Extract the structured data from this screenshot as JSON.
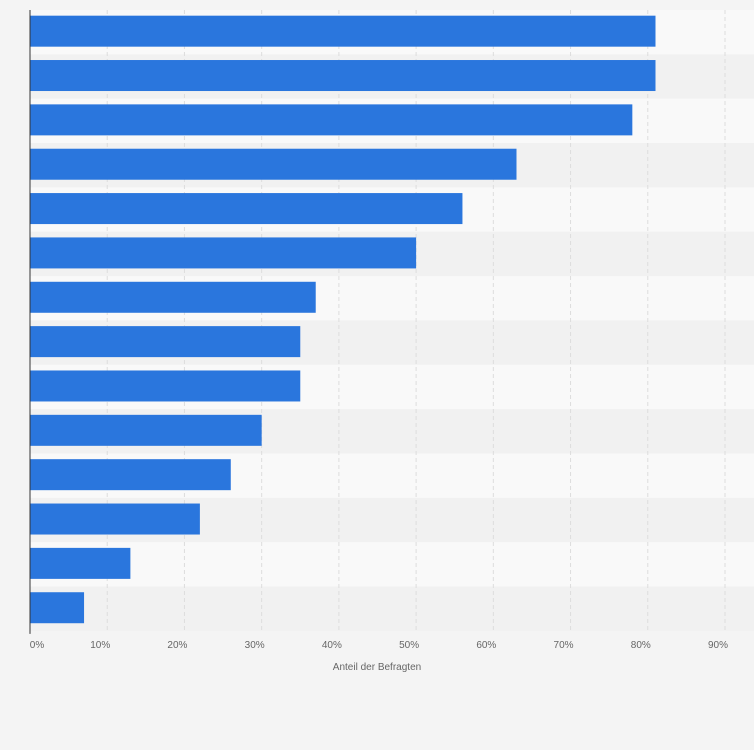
{
  "chart_data": {
    "type": "bar",
    "orientation": "horizontal",
    "title": "",
    "xlabel": "Anteil der Befragten",
    "ylabel": "",
    "categories": [
      "",
      "",
      "",
      "",
      "",
      "",
      "",
      "",
      "",
      "",
      "",
      "",
      "",
      ""
    ],
    "values": [
      81,
      81,
      78,
      63,
      56,
      50,
      37,
      35,
      35,
      30,
      26,
      22,
      13,
      7
    ],
    "xlim": [
      0,
      90
    ],
    "x_ticks": [
      0,
      10,
      20,
      30,
      40,
      50,
      60,
      70,
      80,
      90
    ],
    "x_tick_labels": [
      "0%",
      "10%",
      "20%",
      "30%",
      "40%",
      "50%",
      "60%",
      "70%",
      "80%",
      "90%"
    ],
    "grid": true,
    "legend": "none",
    "colors": {
      "bar": "#2a76dd",
      "grid": "#dddddd",
      "band_light": "#f9f9f9",
      "band_dark": "#f1f1f1",
      "axis": "#333333",
      "background": "#f4f4f4"
    }
  }
}
